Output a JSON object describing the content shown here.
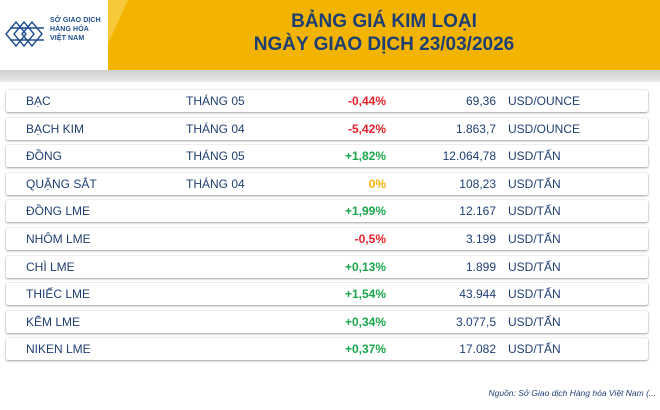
{
  "logo": {
    "line1": "SỞ GIAO DỊCH",
    "line2": "HÀNG HÓA",
    "line3": "VIỆT NAM",
    "icon": "mxv-logo-icon"
  },
  "title": {
    "line1": "BẢNG GIÁ KIM LOẠI",
    "line2": "NGÀY GIAO DỊCH 23/03/2026"
  },
  "colors": {
    "gold": "#f2b400",
    "navy": "#1f3f73",
    "negative": "#e8212a",
    "positive": "#1aa64a",
    "neutral": "#f2b200"
  },
  "rows": [
    {
      "name": "BẠC",
      "month": "THÁNG 05",
      "change": "-0,44%",
      "dir": "neg",
      "price": "69,36",
      "unit": "USD/OUNCE"
    },
    {
      "name": "BẠCH KIM",
      "month": "THÁNG 04",
      "change": "-5,42%",
      "dir": "neg",
      "price": "1.863,7",
      "unit": "USD/OUNCE"
    },
    {
      "name": "ĐỒNG",
      "month": "THÁNG 05",
      "change": "+1,82%",
      "dir": "pos",
      "price": "12.064,78",
      "unit": "USD/TẤN"
    },
    {
      "name": "QUẶNG SẮT",
      "month": "THÁNG 04",
      "change": "0%",
      "dir": "zero",
      "price": "108,23",
      "unit": "USD/TẤN"
    },
    {
      "name": "ĐỒNG LME",
      "month": "",
      "change": "+1,99%",
      "dir": "pos",
      "price": "12.167",
      "unit": "USD/TẤN"
    },
    {
      "name": "NHÔM LME",
      "month": "",
      "change": "-0,5%",
      "dir": "neg",
      "price": "3.199",
      "unit": "USD/TẤN"
    },
    {
      "name": "CHÌ LME",
      "month": "",
      "change": "+0,13%",
      "dir": "pos",
      "price": "1.899",
      "unit": "USD/TẤN"
    },
    {
      "name": "THIẾC LME",
      "month": "",
      "change": "+1,54%",
      "dir": "pos",
      "price": "43.944",
      "unit": "USD/TẤN"
    },
    {
      "name": "KẼM LME",
      "month": "",
      "change": "+0,34%",
      "dir": "pos",
      "price": "3.077,5",
      "unit": "USD/TẤN"
    },
    {
      "name": "NIKEN LME",
      "month": "",
      "change": "+0,37%",
      "dir": "pos",
      "price": "17.082",
      "unit": "USD/TẤN"
    }
  ],
  "source": "Nguồn: Sở Giao dịch Hàng hóa Việt Nam (..."
}
